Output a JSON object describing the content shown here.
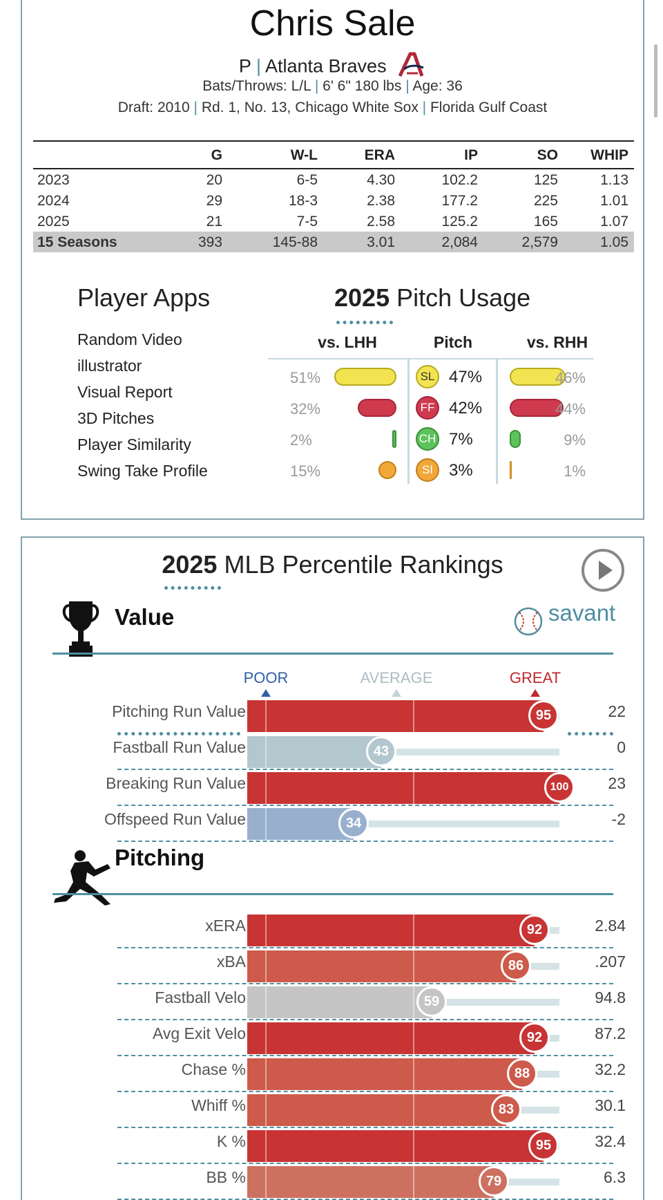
{
  "player": {
    "name": "Chris Sale",
    "position": "P",
    "team": "Atlanta Braves",
    "bats_throws": "Bats/Throws: L/L",
    "size": "6' 6\" 180 lbs",
    "age": "Age: 36",
    "draft_year": "Draft: 2010",
    "draft_pick": "Rd. 1, No. 13, Chicago White Sox",
    "school": "Florida Gulf Coast"
  },
  "stats": {
    "headers": [
      "",
      "G",
      "W-L",
      "ERA",
      "IP",
      "SO",
      "WHIP"
    ],
    "rows": [
      [
        "2023",
        "20",
        "6-5",
        "4.30",
        "102.2",
        "125",
        "1.13"
      ],
      [
        "2024",
        "29",
        "18-3",
        "2.38",
        "177.2",
        "225",
        "1.01"
      ],
      [
        "2025",
        "21",
        "7-5",
        "2.58",
        "125.2",
        "165",
        "1.07"
      ]
    ],
    "total": [
      "15 Seasons",
      "393",
      "145-88",
      "3.01",
      "2,084",
      "2,579",
      "1.05"
    ]
  },
  "apps": {
    "title": "Player Apps",
    "items": [
      "Random Video",
      "illustrator",
      "Visual Report",
      "3D Pitches",
      "Player Similarity",
      "Swing Take Profile"
    ]
  },
  "usage": {
    "year": "2025",
    "title": "Pitch Usage",
    "head_lhh": "vs. LHH",
    "head_pitch": "Pitch",
    "head_rhh": "vs. RHH",
    "rows": [
      {
        "code": "SL",
        "color": "#f2e451",
        "border": "#b6a91f",
        "text": "#333",
        "lhh": "51%",
        "lhh_v": 51,
        "pct": "47%",
        "rhh": "46%",
        "rhh_v": 46
      },
      {
        "code": "FF",
        "color": "#cf3a4f",
        "border": "#a42637",
        "text": "#fff",
        "lhh": "32%",
        "lhh_v": 32,
        "pct": "42%",
        "rhh": "44%",
        "rhh_v": 44
      },
      {
        "code": "CH",
        "color": "#5cc35a",
        "border": "#3c8f3a",
        "text": "#fff",
        "lhh": "2%",
        "lhh_v": 2,
        "pct": "7%",
        "rhh": "9%",
        "rhh_v": 9
      },
      {
        "code": "SI",
        "color": "#f2a838",
        "border": "#c07f1a",
        "text": "#fff",
        "lhh": "15%",
        "lhh_v": 15,
        "pct": "3%",
        "rhh": "1%",
        "rhh_v": 1
      }
    ]
  },
  "percentile": {
    "year": "2025",
    "title": "MLB Percentile Rankings",
    "savant": "savant",
    "scale": {
      "poor": "POOR",
      "average": "AVERAGE",
      "great": "GREAT"
    },
    "value_section": "Value",
    "value_rows": [
      {
        "label": "Pitching Run Value",
        "pct": 95,
        "value": "22"
      },
      {
        "label": "Fastball Run Value",
        "pct": 43,
        "value": "0"
      },
      {
        "label": "Breaking Run Value",
        "pct": 100,
        "value": "23"
      },
      {
        "label": "Offspeed Run Value",
        "pct": 34,
        "value": "-2"
      }
    ],
    "pitching_section": "Pitching",
    "pitching_rows": [
      {
        "label": "xERA",
        "pct": 92,
        "value": "2.84"
      },
      {
        "label": "xBA",
        "pct": 86,
        "value": ".207"
      },
      {
        "label": "Fastball Velo",
        "pct": 59,
        "value": "94.8"
      },
      {
        "label": "Avg Exit Velo",
        "pct": 92,
        "value": "87.2"
      },
      {
        "label": "Chase %",
        "pct": 88,
        "value": "32.2"
      },
      {
        "label": "Whiff %",
        "pct": 83,
        "value": "30.1"
      },
      {
        "label": "K %",
        "pct": 95,
        "value": "32.4"
      },
      {
        "label": "BB %",
        "pct": 79,
        "value": "6.3"
      }
    ]
  }
}
